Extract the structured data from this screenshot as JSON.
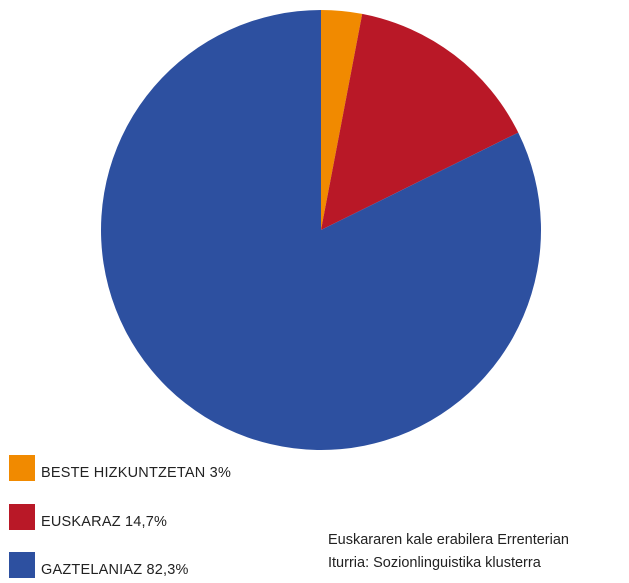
{
  "chart_data": {
    "type": "pie",
    "title": "",
    "slices": [
      {
        "name": "BESTE HIZKUNTZETAN",
        "label": "BESTE HIZKUNTZETAN 3%",
        "value": 3.0,
        "color": "#f18a00"
      },
      {
        "name": "EUSKARAZ",
        "label": "EUSKARAZ 14,7%",
        "value": 14.7,
        "color": "#b91827"
      },
      {
        "name": "GAZTELANIAZ",
        "label": "GAZTELANIAZ 82,3%",
        "value": 82.3,
        "color": "#2d50a0"
      }
    ],
    "legend_placement": "bottom-left",
    "start_angle": "12 o'clock",
    "direction": "clockwise"
  },
  "caption": {
    "line1": "Euskararen kale erabilera Errenterian",
    "line2": "Iturria: Sozionlinguistika klusterra"
  }
}
